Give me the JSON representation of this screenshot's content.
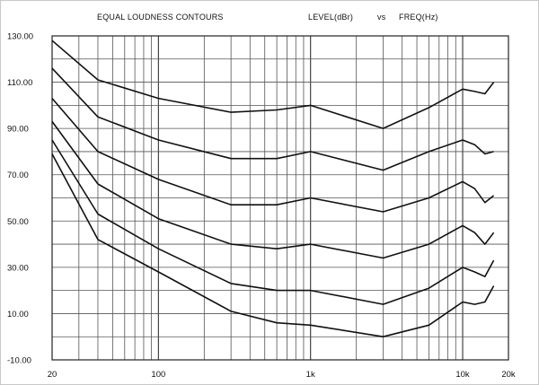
{
  "chart_data": {
    "type": "line",
    "title": "EQUAL LOUDNESS CONTOURS",
    "ylabel": "LEVEL(dBr)",
    "vs_label": "vs",
    "xlabel": "FREQ(Hz)",
    "x_scale": "log",
    "xlim": [
      20,
      20000
    ],
    "ylim": [
      -10,
      130
    ],
    "grid": true,
    "x_ticks": [
      {
        "value": 20,
        "label": "20"
      },
      {
        "value": 100,
        "label": "100"
      },
      {
        "value": 1000,
        "label": "1k"
      },
      {
        "value": 10000,
        "label": "10k"
      },
      {
        "value": 20000,
        "label": "20k"
      }
    ],
    "y_ticks": [
      {
        "value": 130,
        "label": "130.00"
      },
      {
        "value": 110,
        "label": "110.00"
      },
      {
        "value": 90,
        "label": "90.00"
      },
      {
        "value": 70,
        "label": "70.00"
      },
      {
        "value": 50,
        "label": "50.00"
      },
      {
        "value": 30,
        "label": "30.00"
      },
      {
        "value": 10,
        "label": "10.00"
      },
      {
        "value": -10,
        "label": "-10.00"
      }
    ],
    "x": [
      20,
      40,
      100,
      300,
      600,
      1000,
      3000,
      6000,
      10000,
      12000,
      14000,
      16000
    ],
    "series": [
      {
        "values": [
          128,
          111,
          103,
          97,
          98,
          100,
          90,
          99,
          107,
          106,
          105,
          110
        ]
      },
      {
        "values": [
          116,
          95,
          85,
          77,
          77,
          80,
          72,
          80,
          85,
          83,
          79,
          80
        ]
      },
      {
        "values": [
          103,
          80,
          68,
          57,
          57,
          60,
          54,
          60,
          67,
          64,
          58,
          61
        ]
      },
      {
        "values": [
          93,
          66,
          51,
          40,
          38,
          40,
          34,
          40,
          48,
          45,
          40,
          45
        ]
      },
      {
        "values": [
          85,
          53,
          38,
          23,
          20,
          20,
          14,
          21,
          30,
          28,
          26,
          33
        ]
      },
      {
        "values": [
          79,
          42,
          28,
          11,
          6,
          5,
          0,
          5,
          15,
          14,
          15,
          22
        ]
      }
    ]
  }
}
